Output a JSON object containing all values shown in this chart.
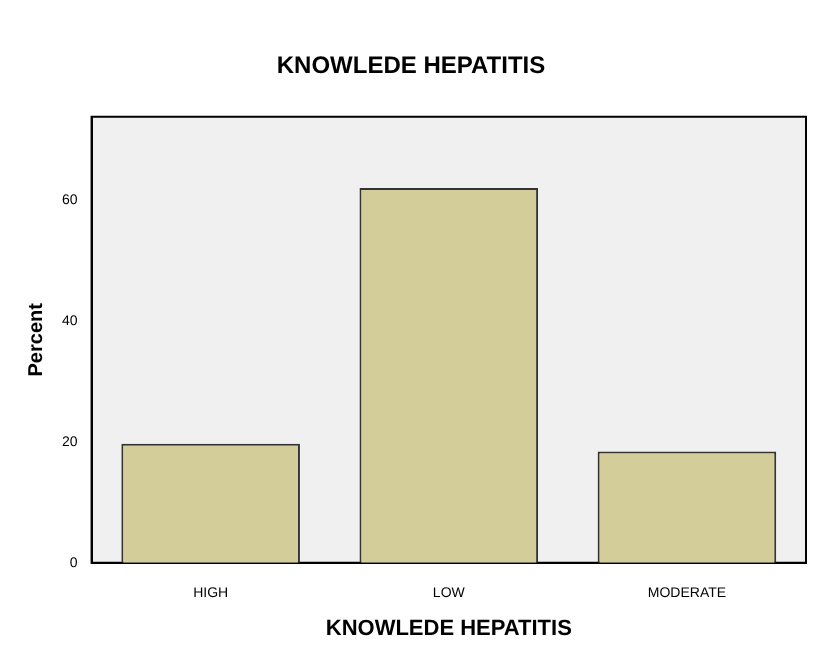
{
  "chart_data": {
    "type": "bar",
    "title": "KNOWLEDE HEPATITIS",
    "xlabel": "KNOWLEDE HEPATITIS",
    "ylabel": "Percent",
    "categories": [
      "HIGH",
      "LOW",
      "MODERATE"
    ],
    "values": [
      19.7,
      62.0,
      18.4
    ],
    "color": "#d3ce99",
    "ylim": [
      0,
      73.8
    ],
    "yticks": [
      0,
      20,
      40,
      60
    ],
    "grid": false,
    "legend": false
  }
}
